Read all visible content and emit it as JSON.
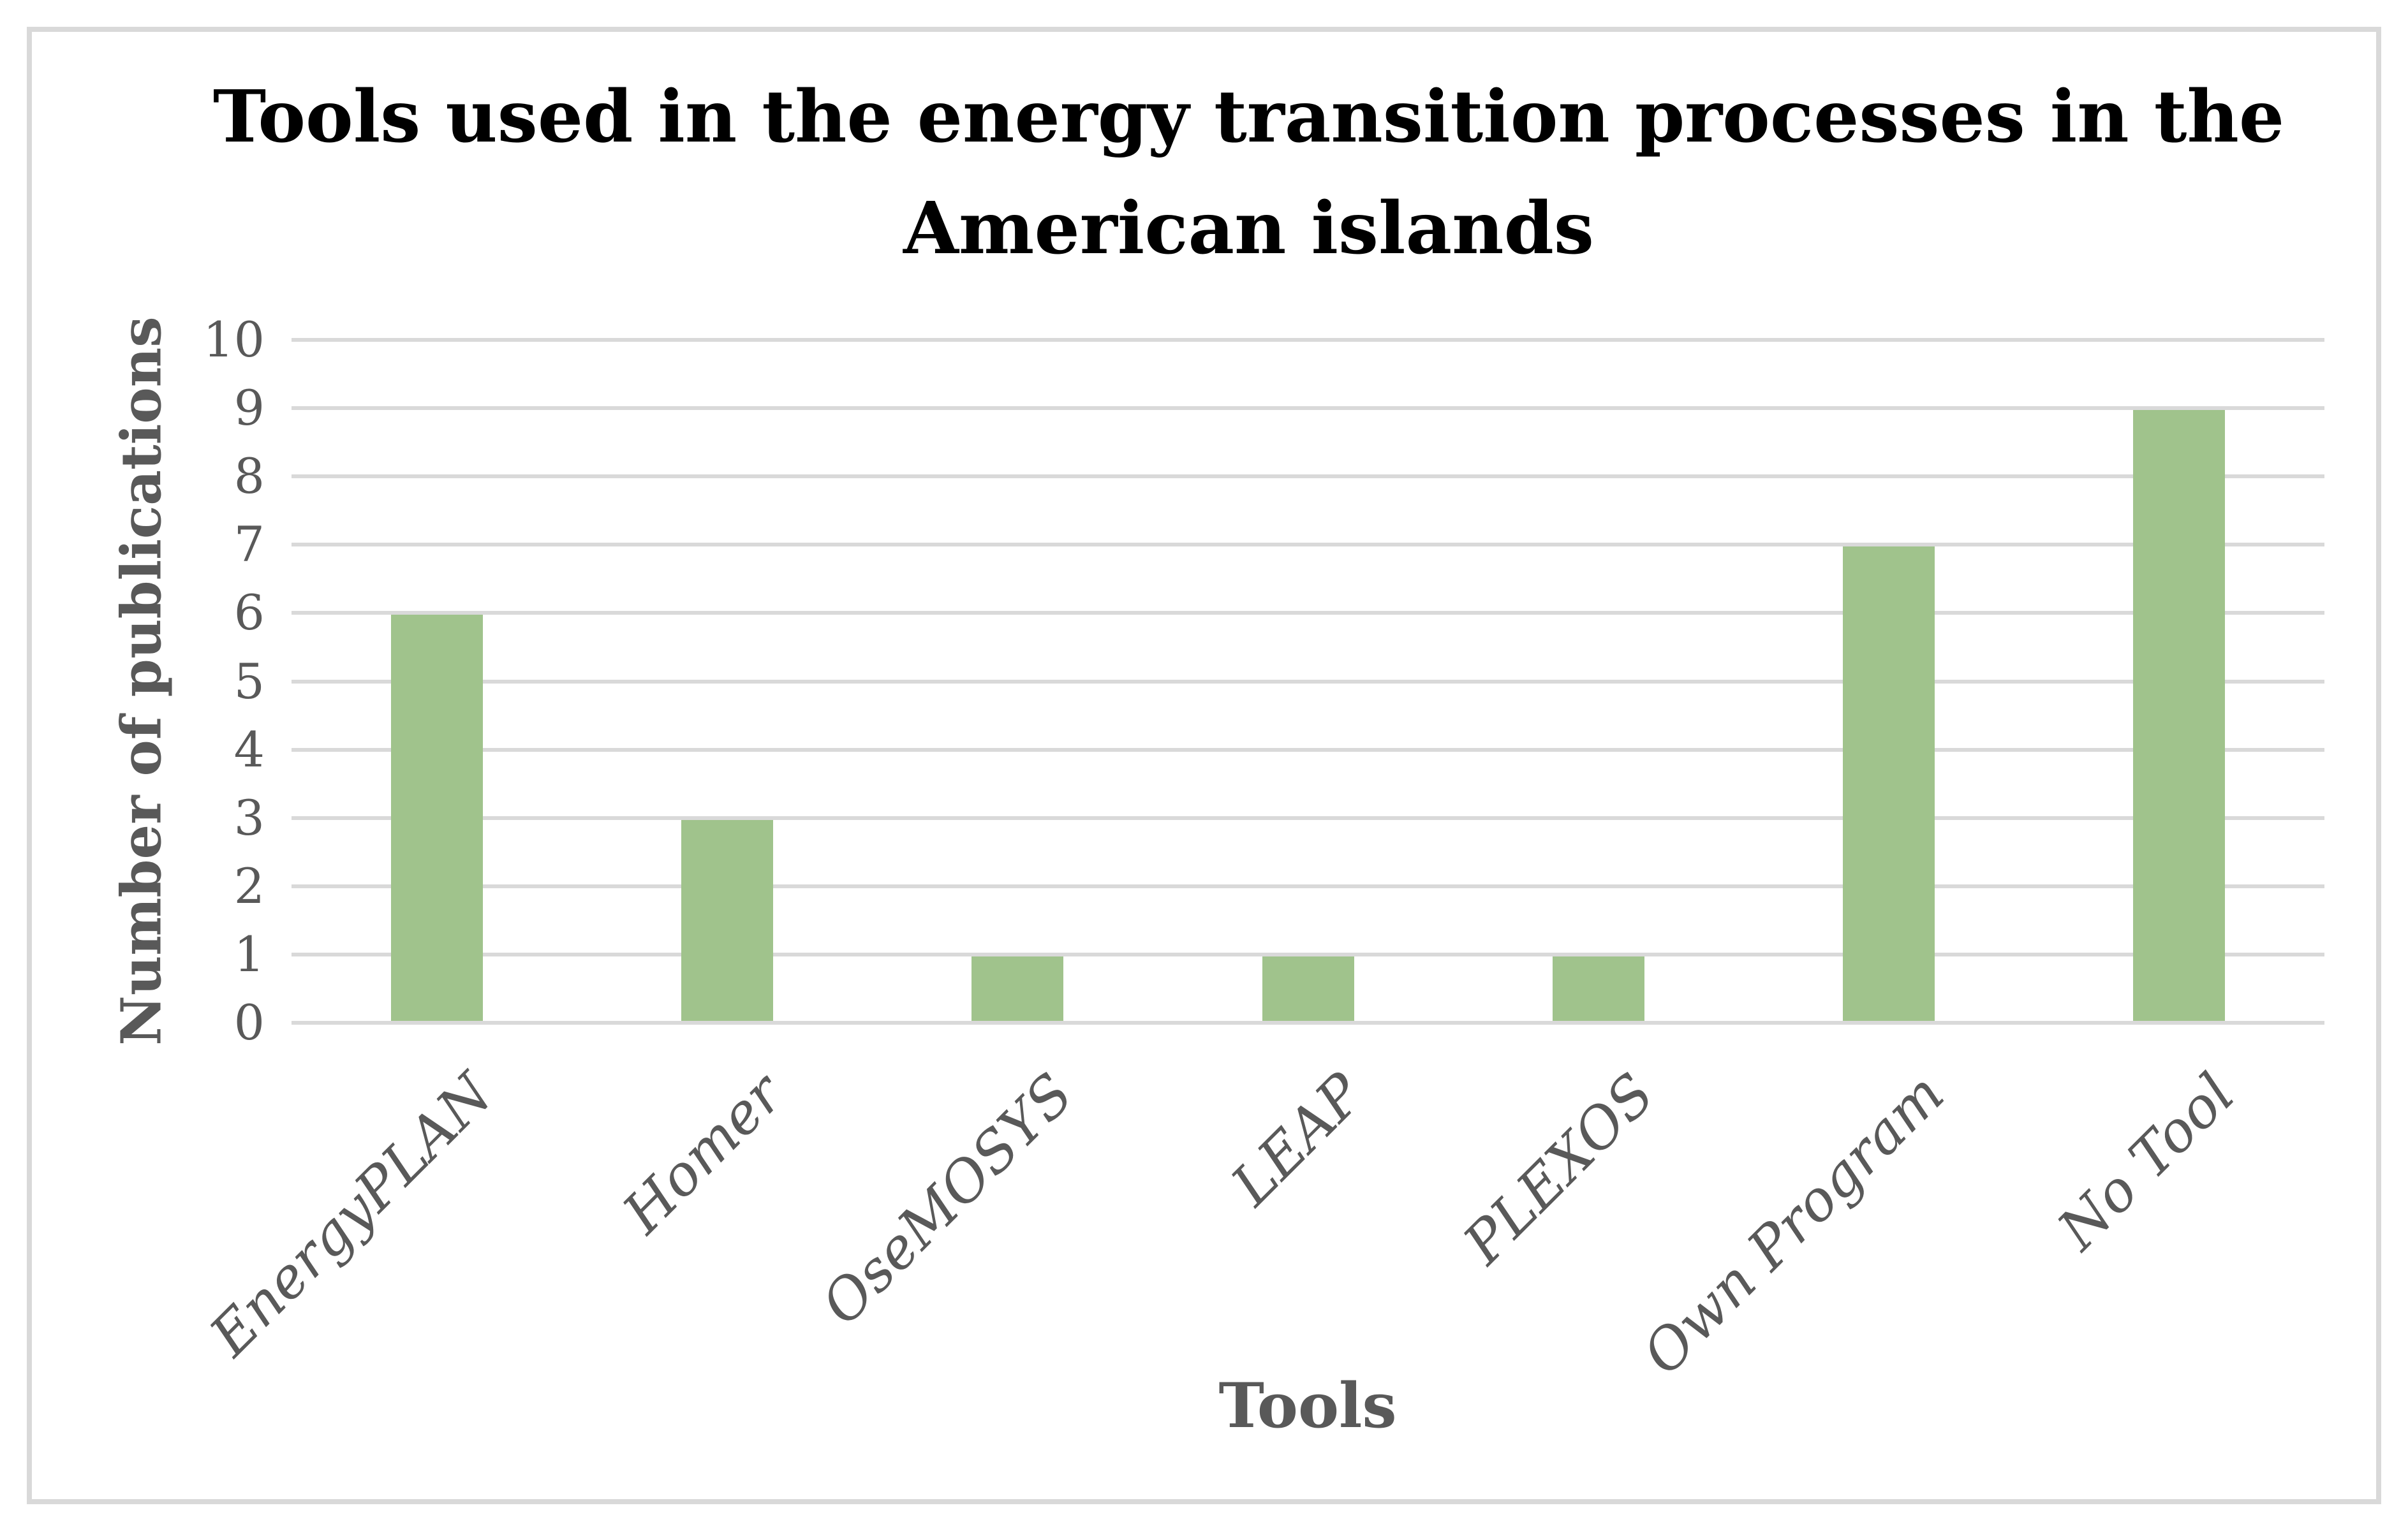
{
  "figure": {
    "background_color": "#FFFFFF",
    "border_color": "#D9D9D9"
  },
  "title": {
    "line1": "Tools used in the energy transition processes in the",
    "line2": "American islands",
    "color": "#000000"
  },
  "chart_data": {
    "type": "bar",
    "title": "Tools used in the energy transition processes in the American islands",
    "categories": [
      "EnergyPLAN",
      "Homer",
      "OseMOSYS",
      "LEAP",
      "PLEXOS",
      "Own Program",
      "No Tool"
    ],
    "values": [
      6,
      3,
      1,
      1,
      1,
      7,
      9
    ],
    "xlabel": "Tools",
    "ylabel": "Number of publications",
    "ylim": [
      0,
      10
    ],
    "ytick_step": 1,
    "yticks": [
      "0",
      "1",
      "2",
      "3",
      "4",
      "5",
      "6",
      "7",
      "8",
      "9",
      "10"
    ],
    "grid": "horizontal",
    "legend": "none",
    "bar_color": "#A0C38C",
    "gridline_color": "#D9D9D9",
    "tick_label_color": "#595959",
    "axis_title_color": "#595959"
  }
}
